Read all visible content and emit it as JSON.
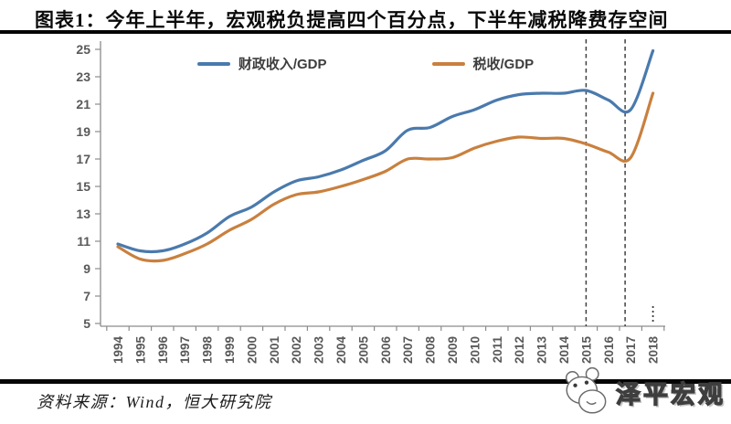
{
  "header": {
    "title": "图表1：今年上半年，宏观税负提高四个百分点，下半年减税降费存空间"
  },
  "footer": {
    "source": "资料来源：Wind，恒大研究院"
  },
  "watermark": {
    "text": "泽平宏观",
    "logo": "panda-face-icon"
  },
  "chart_data": {
    "type": "line",
    "title": "",
    "xlabel": "",
    "ylabel": "",
    "x": [
      1994,
      1995,
      1996,
      1997,
      1998,
      1999,
      2000,
      2001,
      2002,
      2003,
      2004,
      2005,
      2006,
      2007,
      2008,
      2009,
      2010,
      2011,
      2012,
      2013,
      2014,
      2015,
      2016,
      2017,
      2018
    ],
    "series": [
      {
        "name": "财政收入/GDP",
        "color": "#4a7aad",
        "values": [
          10.8,
          10.3,
          10.3,
          10.8,
          11.6,
          12.8,
          13.5,
          14.6,
          15.4,
          15.7,
          16.2,
          16.9,
          17.6,
          19.1,
          19.3,
          20.1,
          20.6,
          21.3,
          21.7,
          21.8,
          21.8,
          22.0,
          21.3,
          20.6,
          24.9
        ]
      },
      {
        "name": "税收/GDP",
        "color": "#c9803e",
        "values": [
          10.6,
          9.7,
          9.6,
          10.1,
          10.8,
          11.8,
          12.6,
          13.7,
          14.4,
          14.6,
          15.0,
          15.5,
          16.1,
          17.0,
          17.0,
          17.1,
          17.8,
          18.3,
          18.6,
          18.5,
          18.5,
          18.1,
          17.5,
          17.1,
          21.8
        ]
      }
    ],
    "ylim": [
      5,
      25
    ],
    "ytick_step": 2,
    "yticks": [
      5,
      7,
      9,
      11,
      13,
      15,
      17,
      19,
      21,
      23,
      25
    ],
    "grid": false,
    "legend_position": "top",
    "axis_color": "#8c8c8c",
    "tick_label_color": "#595959",
    "annotations": {
      "dashed_vlines_x": [
        2015,
        2016.75
      ],
      "partial_period_marker_x": 2018
    }
  }
}
